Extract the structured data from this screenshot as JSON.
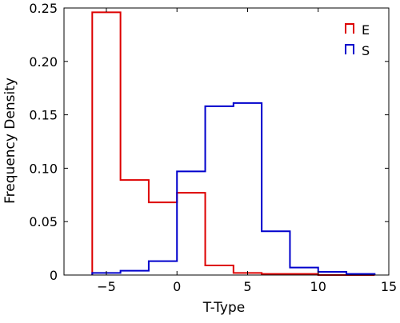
{
  "chart_data": {
    "type": "histogram",
    "xlabel": "T-Type",
    "ylabel": "Frequency Density",
    "xlim": [
      -8,
      15
    ],
    "ylim": [
      0,
      0.25
    ],
    "xticks": [
      -5,
      0,
      5,
      10,
      15
    ],
    "yticks": [
      0,
      0.05,
      0.1,
      0.15,
      0.2,
      0.25
    ],
    "xtick_labels": [
      "−5",
      "0",
      "5",
      "10",
      "15"
    ],
    "ytick_labels": [
      "0",
      "0.05",
      "0.10",
      "0.15",
      "0.20",
      "0.25"
    ],
    "grid": false,
    "legend_position": "top-right",
    "bin_edges": [
      -6,
      -4,
      -2,
      0,
      2,
      4,
      6,
      8,
      10,
      12,
      14
    ],
    "series": [
      {
        "name": "E",
        "color": "#dd0000",
        "values": [
          0.246,
          0.089,
          0.068,
          0.077,
          0.009,
          0.002,
          0.001,
          0.001,
          0.0,
          0.0
        ]
      },
      {
        "name": "S",
        "color": "#0000cc",
        "values": [
          0.002,
          0.004,
          0.013,
          0.097,
          0.158,
          0.161,
          0.041,
          0.007,
          0.003,
          0.001
        ]
      }
    ]
  }
}
